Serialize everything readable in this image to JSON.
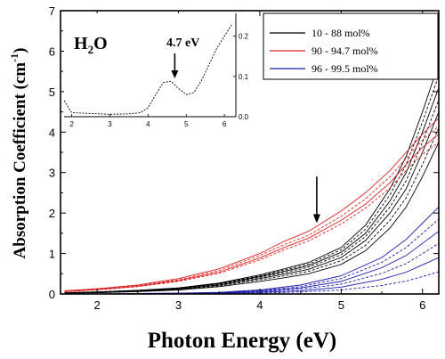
{
  "chart_data": {
    "type": "line",
    "xlabel": "Photon Energy (eV)",
    "ylabel": "Absorption Coefficient (cm",
    "ylabel_sup": "-1",
    "ylabel_close": ")",
    "xlim": [
      1.55,
      6.2
    ],
    "ylim": [
      0,
      7
    ],
    "x_ticks": [
      2,
      3,
      4,
      5,
      6
    ],
    "y_ticks": [
      0,
      1,
      2,
      3,
      4,
      5,
      6,
      7
    ],
    "legend_position": "top-right",
    "legend": [
      {
        "label": "10 - 88 mol%",
        "color": "#000000"
      },
      {
        "label": "90 - 94.7 mol%",
        "color": "#dd2222"
      },
      {
        "label": "96 - 99.5 mol%",
        "color": "#1a1aaa"
      }
    ],
    "groups": [
      {
        "name": "10 - 88 mol%",
        "color": "#000000",
        "x": [
          1.6,
          2.0,
          2.5,
          3.0,
          3.5,
          4.0,
          4.3,
          4.6,
          5.0,
          5.3,
          5.6,
          5.8,
          6.0,
          6.2
        ],
        "series": [
          {
            "values": [
              0.03,
              0.05,
              0.09,
              0.15,
              0.27,
              0.47,
              0.62,
              0.78,
              1.15,
              1.7,
              2.6,
              3.4,
              4.5,
              5.7
            ]
          },
          {
            "values": [
              0.03,
              0.05,
              0.09,
              0.15,
              0.26,
              0.45,
              0.59,
              0.74,
              1.09,
              1.6,
              2.45,
              3.2,
              4.25,
              5.4
            ]
          },
          {
            "values": [
              0.03,
              0.04,
              0.08,
              0.14,
              0.25,
              0.43,
              0.56,
              0.7,
              1.03,
              1.5,
              2.3,
              3.0,
              4.0,
              5.1
            ]
          },
          {
            "values": [
              0.02,
              0.04,
              0.08,
              0.13,
              0.24,
              0.41,
              0.53,
              0.66,
              0.97,
              1.42,
              2.15,
              2.8,
              3.75,
              4.8
            ]
          },
          {
            "values": [
              0.02,
              0.04,
              0.07,
              0.12,
              0.22,
              0.38,
              0.49,
              0.61,
              0.9,
              1.32,
              2.0,
              2.6,
              3.5,
              4.5
            ]
          },
          {
            "values": [
              0.02,
              0.03,
              0.06,
              0.11,
              0.2,
              0.35,
              0.45,
              0.56,
              0.82,
              1.2,
              1.82,
              2.38,
              3.2,
              4.1
            ]
          },
          {
            "values": [
              0.02,
              0.03,
              0.06,
              0.1,
              0.18,
              0.31,
              0.4,
              0.5,
              0.73,
              1.07,
              1.63,
              2.15,
              2.9,
              3.75
            ]
          }
        ]
      },
      {
        "name": "90 - 94.7 mol%",
        "color": "#dd2222",
        "x": [
          1.6,
          2.0,
          2.5,
          3.0,
          3.5,
          4.0,
          4.3,
          4.6,
          5.0,
          5.3,
          5.6,
          5.8,
          6.0,
          6.2
        ],
        "series": [
          {
            "values": [
              0.08,
              0.13,
              0.22,
              0.38,
              0.62,
              1.0,
              1.3,
              1.55,
              2.05,
              2.5,
              3.05,
              3.5,
              3.95,
              4.35
            ]
          },
          {
            "values": [
              0.07,
              0.12,
              0.21,
              0.35,
              0.58,
              0.95,
              1.22,
              1.45,
              1.92,
              2.35,
              2.9,
              3.35,
              3.8,
              4.15
            ]
          },
          {
            "values": [
              0.06,
              0.11,
              0.19,
              0.33,
              0.54,
              0.89,
              1.15,
              1.38,
              1.82,
              2.22,
              2.75,
              3.2,
              3.62,
              3.95
            ]
          },
          {
            "values": [
              0.06,
              0.1,
              0.18,
              0.31,
              0.51,
              0.84,
              1.09,
              1.31,
              1.73,
              2.12,
              2.62,
              3.05,
              3.45,
              3.75
            ]
          }
        ]
      },
      {
        "name": "96 - 99.5 mol%",
        "color": "#1a1aaa",
        "x": [
          1.6,
          2.0,
          2.5,
          3.0,
          3.5,
          4.0,
          4.5,
          5.0,
          5.5,
          5.8,
          6.0,
          6.2
        ],
        "series": [
          {
            "values": [
              0.0,
              0.0,
              0.01,
              0.02,
              0.04,
              0.1,
              0.22,
              0.45,
              0.9,
              1.35,
              1.75,
              2.15
            ]
          },
          {
            "values": [
              0.0,
              0.0,
              0.01,
              0.02,
              0.03,
              0.08,
              0.18,
              0.38,
              0.78,
              1.15,
              1.5,
              1.85
            ]
          },
          {
            "values": [
              0.0,
              0.0,
              0.0,
              0.01,
              0.03,
              0.07,
              0.15,
              0.31,
              0.65,
              0.95,
              1.25,
              1.55
            ]
          },
          {
            "values": [
              0.0,
              0.0,
              0.0,
              0.01,
              0.02,
              0.05,
              0.12,
              0.24,
              0.51,
              0.75,
              1.0,
              1.25
            ]
          },
          {
            "values": [
              0.0,
              0.0,
              0.0,
              0.01,
              0.02,
              0.04,
              0.08,
              0.17,
              0.36,
              0.54,
              0.72,
              0.9
            ]
          },
          {
            "values": [
              0.0,
              0.0,
              0.0,
              0.0,
              0.01,
              0.02,
              0.05,
              0.1,
              0.21,
              0.32,
              0.43,
              0.55
            ]
          }
        ]
      }
    ],
    "annotation_arrow": {
      "x": 4.7,
      "y_from": 2.9,
      "y_to": 1.75
    },
    "inset": {
      "label": "H",
      "label_sub": "2",
      "label_end": "O",
      "annotation": "4.7 eV",
      "arrow": {
        "x": 4.7,
        "y_from": 0.16,
        "y_to": 0.095
      },
      "xlim": [
        1.8,
        6.3
      ],
      "ylim": [
        0.0,
        0.25
      ],
      "x_ticks": [
        2,
        3,
        4,
        5,
        6
      ],
      "y_ticks": [
        0.0,
        0.1,
        0.2
      ],
      "y_tick_labels": [
        "0.0",
        "0.1",
        "0.2"
      ],
      "curve": {
        "x": [
          1.8,
          2.0,
          2.5,
          3.0,
          3.5,
          3.8,
          4.0,
          4.2,
          4.4,
          4.6,
          4.8,
          5.0,
          5.2,
          5.4,
          5.6,
          5.8,
          6.0,
          6.2
        ],
        "values": [
          0.04,
          0.01,
          0.008,
          0.006,
          0.007,
          0.01,
          0.022,
          0.055,
          0.085,
          0.088,
          0.07,
          0.055,
          0.06,
          0.09,
          0.13,
          0.17,
          0.2,
          0.23
        ]
      }
    }
  }
}
